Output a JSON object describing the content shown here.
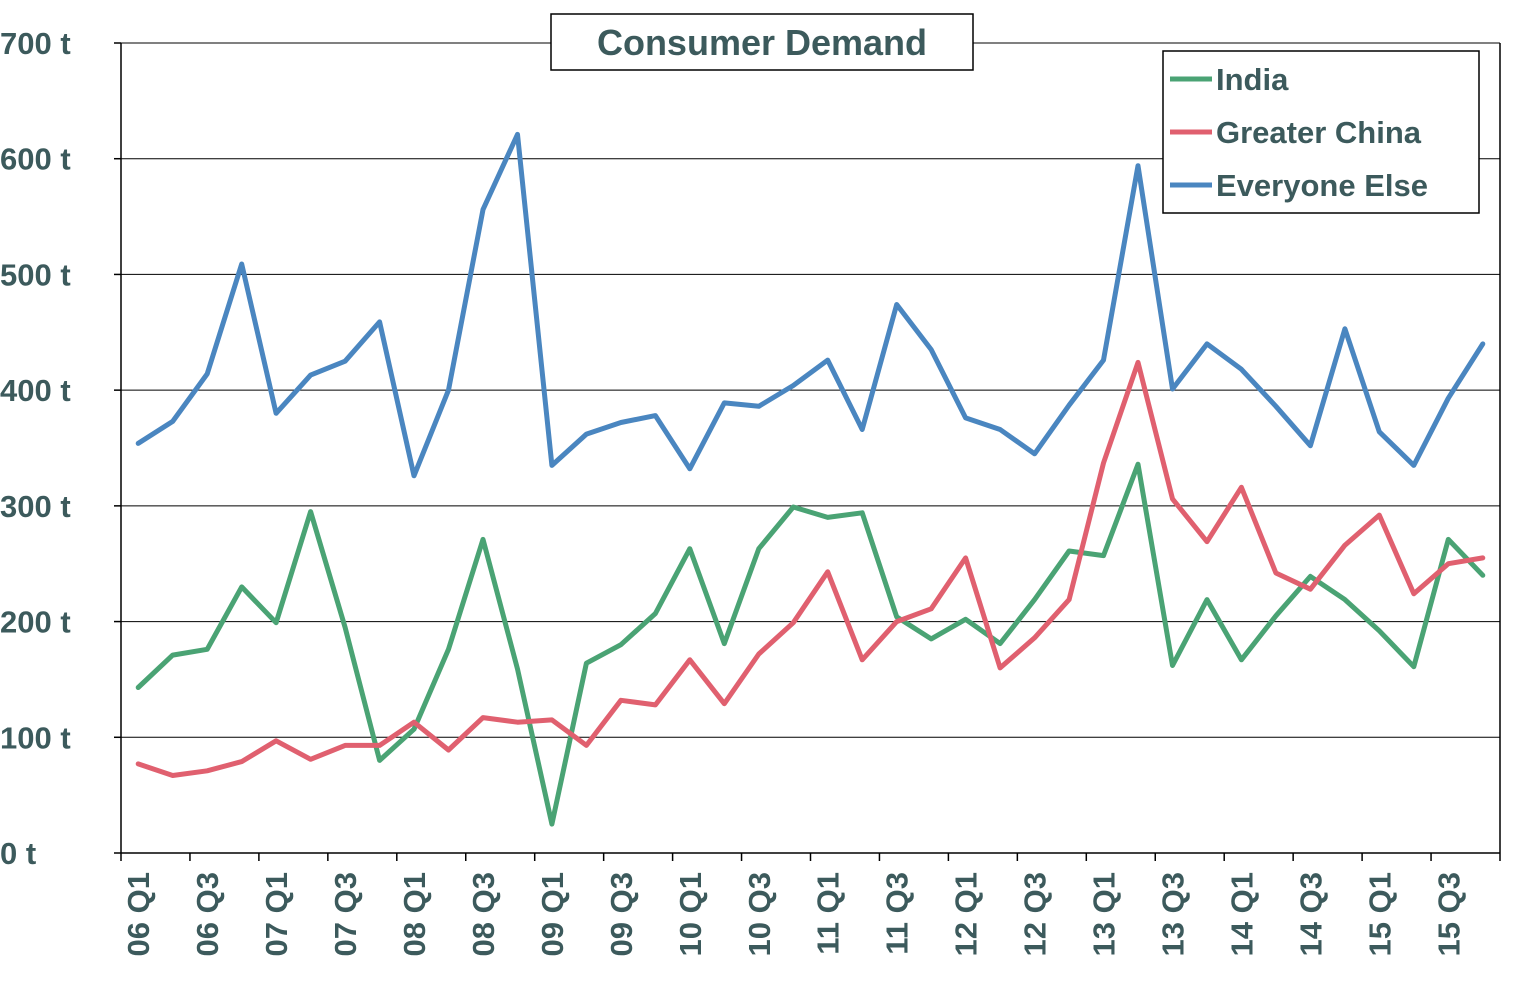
{
  "chart_data": {
    "type": "line",
    "title": "Consumer Demand",
    "xlabel": "",
    "ylabel": "",
    "ylim": [
      0,
      700
    ],
    "y_ticks": [
      {
        "value": 0,
        "label": "0 t"
      },
      {
        "value": 100,
        "label": "100 t"
      },
      {
        "value": 200,
        "label": "200 t"
      },
      {
        "value": 300,
        "label": "300 t"
      },
      {
        "value": 400,
        "label": "400 t"
      },
      {
        "value": 500,
        "label": "500 t"
      },
      {
        "value": 600,
        "label": "600 t"
      },
      {
        "value": 700,
        "label": "700 t"
      }
    ],
    "grid": "horizontal",
    "legend_position": "top-right",
    "categories": [
      "06 Q1",
      "06 Q2",
      "06 Q3",
      "06 Q4",
      "07 Q1",
      "07 Q2",
      "07 Q3",
      "07 Q4",
      "08 Q1",
      "08 Q2",
      "08 Q3",
      "08 Q4",
      "09 Q1",
      "09 Q2",
      "09 Q3",
      "09 Q4",
      "10 Q1",
      "10 Q2",
      "10 Q3",
      "10 Q4",
      "11 Q1",
      "11 Q2",
      "11 Q3",
      "11 Q4",
      "12 Q1",
      "12 Q2",
      "12 Q3",
      "12 Q4",
      "13 Q1",
      "13 Q2",
      "13 Q3",
      "13 Q4",
      "14 Q1",
      "14 Q2",
      "14 Q3",
      "14 Q4",
      "15 Q1",
      "15 Q2",
      "15 Q3",
      "15 Q4"
    ],
    "tick_labels": [
      "06 Q1",
      "06 Q3",
      "07 Q1",
      "07 Q3",
      "08 Q1",
      "08 Q3",
      "09 Q1",
      "09 Q3",
      "10 Q1",
      "10 Q3",
      "11 Q1",
      "11 Q3",
      "12 Q1",
      "12 Q3",
      "13 Q1",
      "13 Q3",
      "14 Q1",
      "14 Q3",
      "15 Q1",
      "15 Q3"
    ],
    "series": [
      {
        "name": "India",
        "color": "#4aa374",
        "values": [
          143,
          171,
          176,
          230,
          199,
          295,
          195,
          80,
          107,
          176,
          271,
          159,
          25,
          164,
          180,
          207,
          263,
          181,
          263,
          299,
          290,
          294,
          204,
          185,
          202,
          181,
          219,
          261,
          257,
          336,
          162,
          219,
          167,
          205,
          239,
          219,
          192,
          161,
          271,
          240
        ]
      },
      {
        "name": "Greater China",
        "color": "#e0606f",
        "values": [
          77,
          67,
          71,
          79,
          97,
          81,
          93,
          93,
          113,
          89,
          117,
          113,
          115,
          93,
          132,
          128,
          167,
          129,
          172,
          199,
          243,
          167,
          200,
          211,
          255,
          160,
          186,
          219,
          337,
          424,
          306,
          269,
          316,
          242,
          228,
          266,
          292,
          224,
          250,
          255
        ]
      },
      {
        "name": "Everyone Else",
        "color": "#4a86c0",
        "values": [
          354,
          373,
          414,
          509,
          380,
          413,
          425,
          459,
          326,
          400,
          556,
          621,
          335,
          362,
          372,
          378,
          332,
          389,
          386,
          404,
          426,
          366,
          474,
          435,
          376,
          366,
          345,
          387,
          426,
          594,
          401,
          440,
          418,
          386,
          352,
          453,
          364,
          335,
          393,
          440
        ]
      }
    ]
  }
}
